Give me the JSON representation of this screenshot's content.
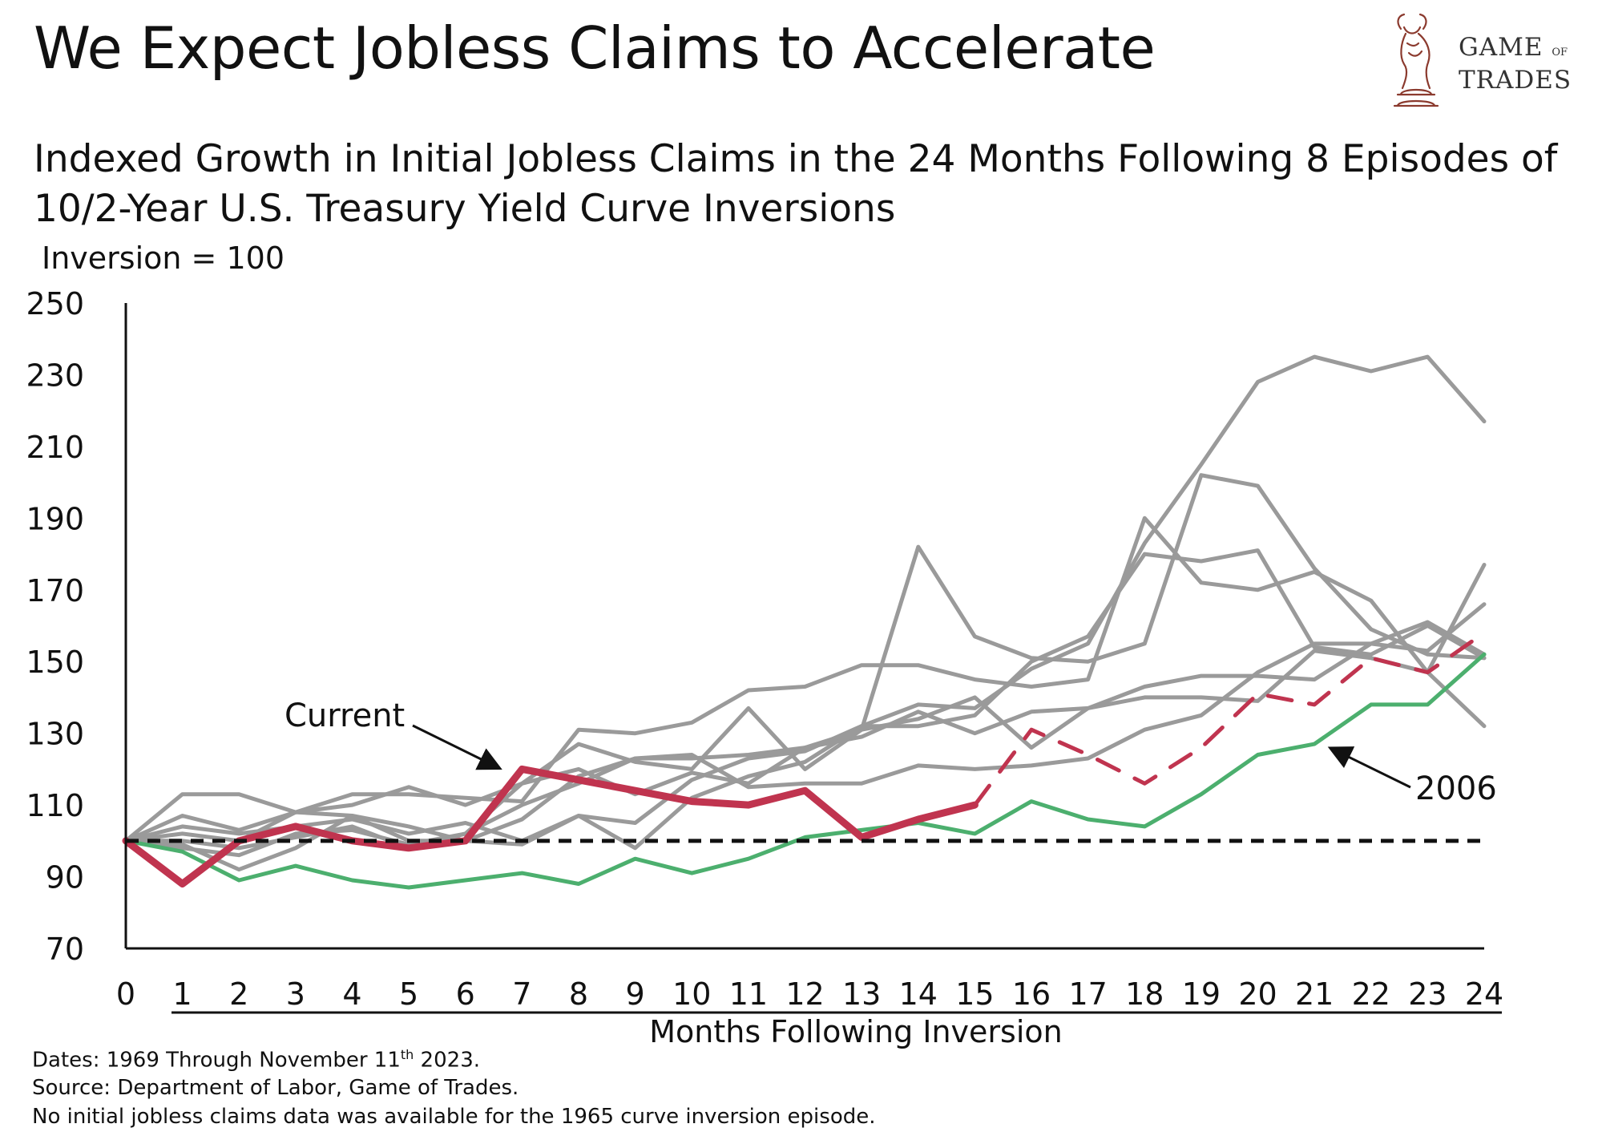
{
  "header": {
    "title": "We Expect Jobless Claims to Accelerate",
    "subtitle": "Indexed Growth in Initial Jobless Claims in the 24 Months Following 8 Episodes of 10/2-Year U.S. Treasury Yield Curve Inversions",
    "unit": "Inversion = 100"
  },
  "logo": {
    "line1": "GAME",
    "of": "OF",
    "line2": "TRADES"
  },
  "footer": {
    "dates_prefix": "Dates: 1969 Through November 11",
    "dates_sup": "th",
    "dates_suffix": " 2023.",
    "source": "Source: Department of Labor, Game of Trades.",
    "note": "No initial jobless claims data was available for the 1965 curve inversion episode."
  },
  "chart_data": {
    "type": "line",
    "xlabel": "Months Following Inversion",
    "ylabel": "Inversion = 100",
    "x": [
      0,
      1,
      2,
      3,
      4,
      5,
      6,
      7,
      8,
      9,
      10,
      11,
      12,
      13,
      14,
      15,
      16,
      17,
      18,
      19,
      20,
      21,
      22,
      23,
      24
    ],
    "xlim": [
      0,
      24
    ],
    "ylim": [
      70,
      250
    ],
    "yticks": [
      70,
      90,
      110,
      130,
      150,
      170,
      190,
      210,
      230,
      250
    ],
    "baseline": 100,
    "grid": false,
    "legend": "none",
    "colors": {
      "current": "#c0344f",
      "highlight": "#4caf6e",
      "other": "#9a9a9a",
      "baseline": "#111111"
    },
    "annotations": [
      {
        "text": "Current",
        "points_to": {
          "x": 7,
          "y": 120
        }
      },
      {
        "text": "2006",
        "points_to": {
          "x": 21,
          "y": 127
        }
      }
    ],
    "series": [
      {
        "role": "other",
        "values": [
          100,
          113,
          113,
          108,
          113,
          113,
          112,
          111,
          131,
          130,
          133,
          142,
          143,
          149,
          149,
          145,
          143,
          145,
          190,
          172,
          170,
          175,
          167,
          147,
          177
        ]
      },
      {
        "role": "other",
        "values": [
          100,
          107,
          103,
          108,
          107,
          104,
          100,
          106,
          118,
          123,
          123,
          124,
          126,
          131,
          134,
          140,
          126,
          137,
          140,
          140,
          139,
          153,
          151,
          147,
          132
        ]
      },
      {
        "role": "other",
        "values": [
          100,
          102,
          100,
          108,
          110,
          115,
          110,
          116,
          127,
          122,
          120,
          137,
          120,
          131,
          182,
          157,
          151,
          150,
          155,
          202,
          199,
          176,
          159,
          152,
          151
        ]
      },
      {
        "role": "other",
        "values": [
          100,
          104,
          102,
          104,
          106,
          102,
          105,
          100,
          107,
          98,
          112,
          118,
          122,
          132,
          132,
          135,
          150,
          157,
          180,
          178,
          181,
          154,
          152,
          160,
          151
        ]
      },
      {
        "role": "other",
        "values": [
          100,
          99,
          92,
          98,
          107,
          100,
          100,
          99,
          107,
          105,
          117,
          123,
          125,
          132,
          138,
          137,
          148,
          155,
          183,
          205,
          228,
          235,
          231,
          235,
          217
        ]
      },
      {
        "role": "other",
        "values": [
          100,
          98,
          96,
          102,
          103,
          99,
          102,
          110,
          116,
          123,
          124,
          115,
          116,
          116,
          121,
          120,
          121,
          123,
          131,
          135,
          147,
          155,
          155,
          161,
          152
        ]
      },
      {
        "role": "other",
        "values": [
          100,
          100,
          98,
          101,
          104,
          98,
          102,
          116,
          120,
          113,
          119,
          116,
          126,
          129,
          136,
          130,
          136,
          137,
          143,
          146,
          146,
          145,
          155,
          153,
          166
        ]
      },
      {
        "role": "highlight",
        "name": "2006",
        "values": [
          100,
          97,
          89,
          93,
          89,
          87,
          89,
          91,
          88,
          95,
          91,
          95,
          101,
          103,
          105,
          102,
          111,
          106,
          104,
          113,
          124,
          127,
          138,
          138,
          152
        ]
      },
      {
        "role": "current",
        "name": "Current",
        "values": [
          100,
          88,
          100,
          104,
          100,
          98,
          100,
          120,
          117,
          114,
          111,
          110,
          114,
          101,
          106,
          110,
          null,
          null,
          null,
          null,
          null,
          null,
          null,
          null,
          null
        ]
      },
      {
        "role": "current-projection",
        "values": [
          null,
          null,
          null,
          null,
          null,
          null,
          null,
          null,
          null,
          null,
          null,
          null,
          null,
          null,
          null,
          110,
          131,
          124,
          116,
          126,
          141,
          138,
          151,
          147,
          158
        ]
      }
    ]
  }
}
